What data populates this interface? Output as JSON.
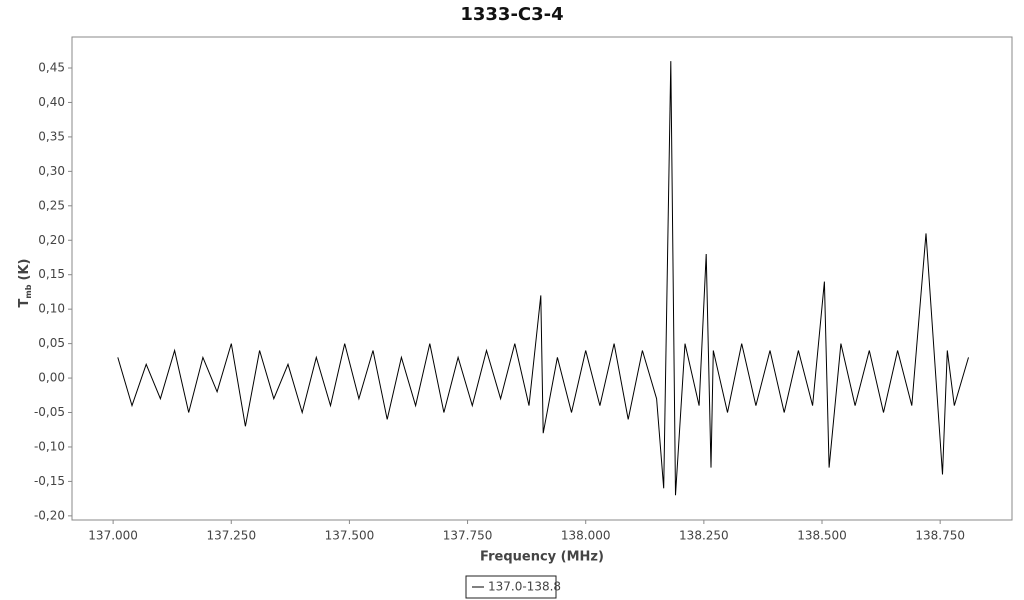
{
  "chart_data": {
    "type": "line",
    "title": "1333-C3-4",
    "xlabel": "Frequency (MHz)",
    "ylabel": "T",
    "ylabel_sub": "mb",
    "ylabel_unit": "(K)",
    "xlim": [
      136.913,
      138.902
    ],
    "ylim": [
      -0.206,
      0.495
    ],
    "xticks": [
      {
        "value": 137.0,
        "label": "137.000"
      },
      {
        "value": 137.25,
        "label": "137.250"
      },
      {
        "value": 137.5,
        "label": "137.500"
      },
      {
        "value": 137.75,
        "label": "137.750"
      },
      {
        "value": 138.0,
        "label": "138.000"
      },
      {
        "value": 138.25,
        "label": "138.250"
      },
      {
        "value": 138.5,
        "label": "138.500"
      },
      {
        "value": 138.75,
        "label": "138.750"
      }
    ],
    "yticks": [
      {
        "value": -0.2,
        "label": "-0,20"
      },
      {
        "value": -0.15,
        "label": "-0,15"
      },
      {
        "value": -0.1,
        "label": "-0,10"
      },
      {
        "value": -0.05,
        "label": "-0,05"
      },
      {
        "value": 0,
        "label": "0,00"
      },
      {
        "value": 0.05,
        "label": "0,05"
      },
      {
        "value": 0.1,
        "label": "0,10"
      },
      {
        "value": 0.15,
        "label": "0,15"
      },
      {
        "value": 0.2,
        "label": "0,20"
      },
      {
        "value": 0.25,
        "label": "0,25"
      },
      {
        "value": 0.3,
        "label": "0,30"
      },
      {
        "value": 0.35,
        "label": "0,35"
      },
      {
        "value": 0.4,
        "label": "0,40"
      },
      {
        "value": 0.45,
        "label": "0,45"
      }
    ],
    "x": [
      137.01,
      137.04,
      137.07,
      137.1,
      137.13,
      137.16,
      137.19,
      137.22,
      137.25,
      137.28,
      137.31,
      137.34,
      137.37,
      137.4,
      137.43,
      137.46,
      137.49,
      137.52,
      137.55,
      137.58,
      137.61,
      137.64,
      137.67,
      137.7,
      137.73,
      137.76,
      137.79,
      137.82,
      137.85,
      137.88,
      137.905,
      137.91,
      137.94,
      137.97,
      138.0,
      138.03,
      138.06,
      138.09,
      138.12,
      138.15,
      138.165,
      138.18,
      138.19,
      138.21,
      138.24,
      138.255,
      138.265,
      138.27,
      138.3,
      138.33,
      138.36,
      138.39,
      138.42,
      138.45,
      138.48,
      138.505,
      138.515,
      138.54,
      138.57,
      138.6,
      138.63,
      138.66,
      138.69,
      138.72,
      138.755,
      138.765,
      138.78,
      138.81
    ],
    "series": [
      {
        "name": "137.0-138.8",
        "color": "#000000",
        "values": [
          0.03,
          -0.04,
          0.02,
          -0.03,
          0.04,
          -0.05,
          0.03,
          -0.02,
          0.05,
          -0.07,
          0.04,
          -0.03,
          0.02,
          -0.05,
          0.03,
          -0.04,
          0.05,
          -0.03,
          0.04,
          -0.06,
          0.03,
          -0.04,
          0.05,
          -0.05,
          0.03,
          -0.04,
          0.04,
          -0.03,
          0.05,
          -0.04,
          0.12,
          -0.08,
          0.03,
          -0.05,
          0.04,
          -0.04,
          0.05,
          -0.06,
          0.04,
          -0.03,
          -0.16,
          0.46,
          -0.17,
          0.05,
          -0.04,
          0.18,
          -0.13,
          0.04,
          -0.05,
          0.05,
          -0.04,
          0.04,
          -0.05,
          0.04,
          -0.04,
          0.14,
          -0.13,
          0.05,
          -0.04,
          0.04,
          -0.05,
          0.04,
          -0.04,
          0.21,
          -0.14,
          0.04,
          -0.04,
          0.03
        ]
      }
    ]
  }
}
